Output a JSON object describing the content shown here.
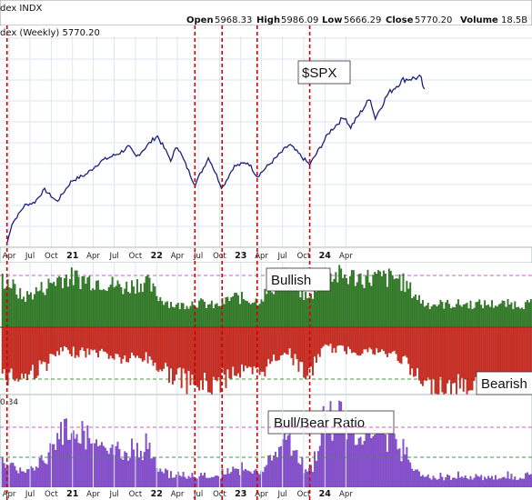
{
  "header": {
    "left": "dex INDX",
    "open_label": "Open",
    "open": "5968.33",
    "high_label": "High",
    "high": "5986.09",
    "low_label": "Low",
    "low": "5666.29",
    "close_label": "Close",
    "close": "5770.20",
    "volume_label": "Volume",
    "volume": "18.5B"
  },
  "chart_data": {
    "type": "line",
    "subtitle": "dex (Weekly) 5770.20",
    "series_label": "$SPX",
    "x_ticks": [
      "Apr",
      "Jul",
      "Oct",
      "21",
      "Apr",
      "Jul",
      "Oct",
      "22",
      "Apr",
      "Jul",
      "Oct",
      "23",
      "Apr",
      "Jul",
      "Oct",
      "24",
      "Apr"
    ],
    "spx_series": [
      {
        "x": "2020-03-23",
        "y": 2304
      },
      {
        "x": "2020-04-13",
        "y": 2750
      },
      {
        "x": "2020-06-08",
        "y": 3190
      },
      {
        "x": "2020-07-20",
        "y": 3250
      },
      {
        "x": "2020-09-01",
        "y": 3550
      },
      {
        "x": "2020-10-26",
        "y": 3270
      },
      {
        "x": "2020-12-28",
        "y": 3750
      },
      {
        "x": "2021-03-01",
        "y": 3900
      },
      {
        "x": "2021-05-03",
        "y": 4200
      },
      {
        "x": "2021-07-26",
        "y": 4400
      },
      {
        "x": "2021-09-02",
        "y": 4540
      },
      {
        "x": "2021-10-04",
        "y": 4300
      },
      {
        "x": "2022-01-03",
        "y": 4800
      },
      {
        "x": "2022-03-07",
        "y": 4200
      },
      {
        "x": "2022-03-28",
        "y": 4600
      },
      {
        "x": "2022-06-16",
        "y": 3660
      },
      {
        "x": "2022-08-15",
        "y": 4300
      },
      {
        "x": "2022-10-12",
        "y": 3580
      },
      {
        "x": "2022-12-01",
        "y": 4080
      },
      {
        "x": "2023-02-02",
        "y": 4180
      },
      {
        "x": "2023-03-13",
        "y": 3850
      },
      {
        "x": "2023-07-31",
        "y": 4590
      },
      {
        "x": "2023-10-27",
        "y": 4120
      },
      {
        "x": "2024-01-22",
        "y": 4890
      },
      {
        "x": "2024-03-28",
        "y": 5250
      },
      {
        "x": "2024-04-19",
        "y": 4967
      },
      {
        "x": "2024-07-16",
        "y": 5667
      },
      {
        "x": "2024-08-05",
        "y": 5190
      },
      {
        "x": "2024-09-30",
        "y": 5760
      },
      {
        "x": "2024-12-06",
        "y": 6090
      },
      {
        "x": "2025-02-19",
        "y": 6144
      },
      {
        "x": "2025-03-10",
        "y": 5770
      }
    ],
    "event_dates": [
      "2020-03-23",
      "2022-06-16",
      "2022-10-12",
      "2023-03-13",
      "2023-10-27"
    ],
    "bullish_label": "Bullish",
    "bearish_label": "Bearish",
    "ratio_label": "Bull/Bear Ratio",
    "ratio_axis_label": "0.34",
    "bullish_series": [
      {
        "x": "2020-03-23",
        "y": 45
      },
      {
        "x": "2020-06-01",
        "y": 28
      },
      {
        "x": "2020-09-01",
        "y": 38
      },
      {
        "x": "2020-11-15",
        "y": 48
      },
      {
        "x": "2021-01-15",
        "y": 47
      },
      {
        "x": "2021-05-01",
        "y": 44
      },
      {
        "x": "2021-08-15",
        "y": 38
      },
      {
        "x": "2021-11-15",
        "y": 44
      },
      {
        "x": "2022-01-15",
        "y": 28
      },
      {
        "x": "2022-04-01",
        "y": 20
      },
      {
        "x": "2022-06-16",
        "y": 24
      },
      {
        "x": "2022-09-20",
        "y": 20
      },
      {
        "x": "2022-12-01",
        "y": 29
      },
      {
        "x": "2023-03-13",
        "y": 25
      },
      {
        "x": "2023-07-15",
        "y": 49
      },
      {
        "x": "2023-10-27",
        "y": 26
      },
      {
        "x": "2023-12-20",
        "y": 50
      },
      {
        "x": "2024-03-01",
        "y": 49
      },
      {
        "x": "2024-07-15",
        "y": 47
      },
      {
        "x": "2024-11-15",
        "y": 47
      },
      {
        "x": "2025-03-10",
        "y": 22
      }
    ],
    "bearish_series": [
      {
        "x": "2020-03-23",
        "y": 48
      },
      {
        "x": "2020-06-01",
        "y": 50
      },
      {
        "x": "2020-09-01",
        "y": 38
      },
      {
        "x": "2020-11-15",
        "y": 24
      },
      {
        "x": "2021-01-15",
        "y": 25
      },
      {
        "x": "2021-05-01",
        "y": 25
      },
      {
        "x": "2021-08-15",
        "y": 32
      },
      {
        "x": "2021-11-15",
        "y": 30
      },
      {
        "x": "2022-01-15",
        "y": 40
      },
      {
        "x": "2022-04-01",
        "y": 50
      },
      {
        "x": "2022-06-16",
        "y": 58
      },
      {
        "x": "2022-09-20",
        "y": 58
      },
      {
        "x": "2022-12-01",
        "y": 43
      },
      {
        "x": "2023-03-13",
        "y": 48
      },
      {
        "x": "2023-07-15",
        "y": 22
      },
      {
        "x": "2023-10-27",
        "y": 50
      },
      {
        "x": "2023-12-20",
        "y": 20
      },
      {
        "x": "2024-03-01",
        "y": 22
      },
      {
        "x": "2024-07-15",
        "y": 24
      },
      {
        "x": "2024-11-15",
        "y": 28
      },
      {
        "x": "2025-03-10",
        "y": 60
      }
    ],
    "colors": {
      "price_line": "#1c1f7a",
      "bullish": "#2d7d22",
      "bearish": "#d8281c",
      "ratio": "#8a4fd6",
      "event_line": "#d40000",
      "grid": "#dbe6f3",
      "dashed_magenta": "#d05cc7",
      "dashed_green": "#3d9a3d"
    }
  }
}
